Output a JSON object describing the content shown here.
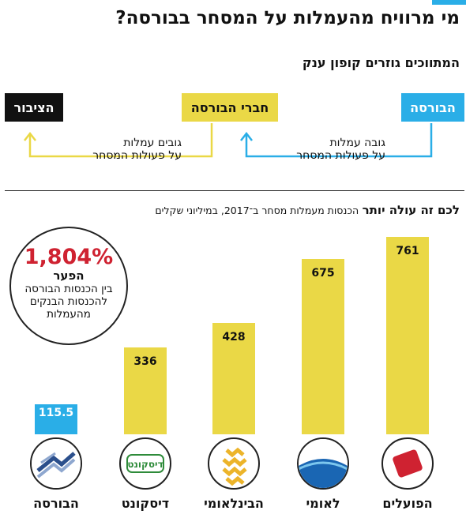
{
  "headline": "מי מרוויח מהעמלות על המסחר בבורסה?",
  "flow": {
    "title": "המתווכים גוזרים קופון ענק",
    "boxes": {
      "exchange": "הבורסה",
      "members": "חברי הבורסה",
      "public": "הציבור"
    },
    "exchange_text": [
      "גובה עמלות",
      "על פעולות המסחר"
    ],
    "members_text": [
      "גובים עמלות",
      "על פעולות המסחר"
    ]
  },
  "callout": {
    "percent": "1,804%",
    "label": "הפער",
    "lines": [
      "בין הכנסות הבורסה",
      "להכנסות הבנקים",
      "מהעמלות"
    ]
  },
  "colors": {
    "accent_blue": "#2aaee7",
    "bar_yellow": "#ead846",
    "callout_red": "#cf2231",
    "dark": "#111111"
  },
  "icons": [
    "hapoalim-logo-icon",
    "leumi-logo-icon",
    "beinleumi-logo-icon",
    "discount-logo-icon",
    "tase-logo-icon"
  ],
  "chart_data": {
    "type": "bar",
    "title": "לכם זה עולה יותר",
    "subtitle": "הכנסות מעמלות מסחר ב־2017, במיליוני שקלים",
    "categories": [
      "הפועלים",
      "לאומי",
      "הבינלאומי",
      "דיסקונט",
      "הבורסה"
    ],
    "values": [
      761,
      675,
      428,
      336,
      115.5
    ],
    "value_labels": [
      "761",
      "675",
      "428",
      "336",
      "115.5"
    ],
    "ylim": [
      0,
      761
    ],
    "grid": false
  }
}
